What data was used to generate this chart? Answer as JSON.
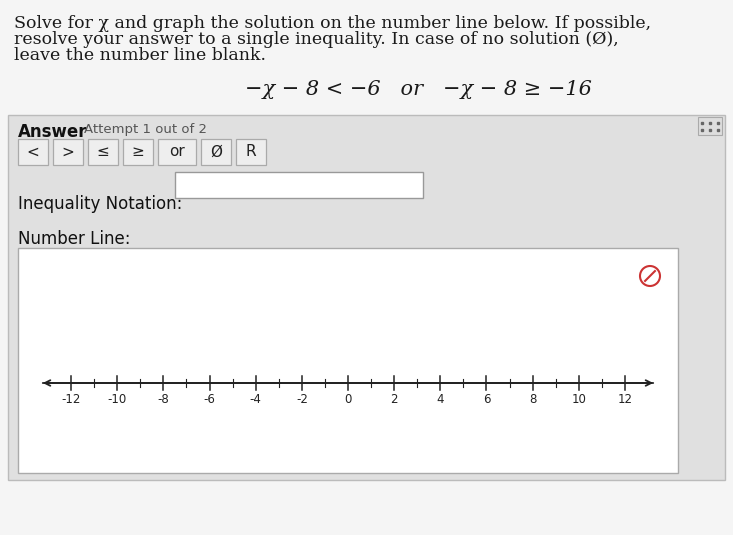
{
  "page_bg": "#f5f5f5",
  "white": "#ffffff",
  "title_text_line1": "Solve for χ and graph the solution on the number line below. If possible,",
  "title_text_line2": "resolve your answer to a single inequality. In case of no solution (Ø),",
  "title_text_line3": "leave the number line blank.",
  "equation_text": "−χ − 8 < −6   or   −χ − 8 ≥ −16",
  "answer_label": "Answer",
  "attempt_label": "Attempt 1 out of 2",
  "buttons": [
    "<",
    ">",
    "≤",
    "≥",
    "or",
    "Ø",
    "R"
  ],
  "inequality_label": "Inequality Notation:",
  "number_line_label": "Number Line:",
  "number_line_ticks": [
    -12,
    -10,
    -8,
    -6,
    -4,
    -2,
    0,
    2,
    4,
    6,
    8,
    10,
    12
  ],
  "section_bg": "#e0e0e0",
  "section_edge": "#bbbbbb",
  "box_edge": "#aaaaaa",
  "button_bg": "#eeeeee",
  "button_edge": "#aaaaaa",
  "input_bg": "#ffffff",
  "input_edge": "#999999",
  "nl_box_bg": "#ffffff",
  "nl_box_edge": "#aaaaaa",
  "font_size_title": 12.5,
  "font_size_eq": 15,
  "font_size_answer": 12,
  "font_size_attempt": 9.5,
  "font_size_btn": 11,
  "font_size_label": 12,
  "font_size_tick": 8.5,
  "icon_color": "#cc3333",
  "icon_bg": "#dddddd",
  "icon_edge": "#aaaaaa"
}
